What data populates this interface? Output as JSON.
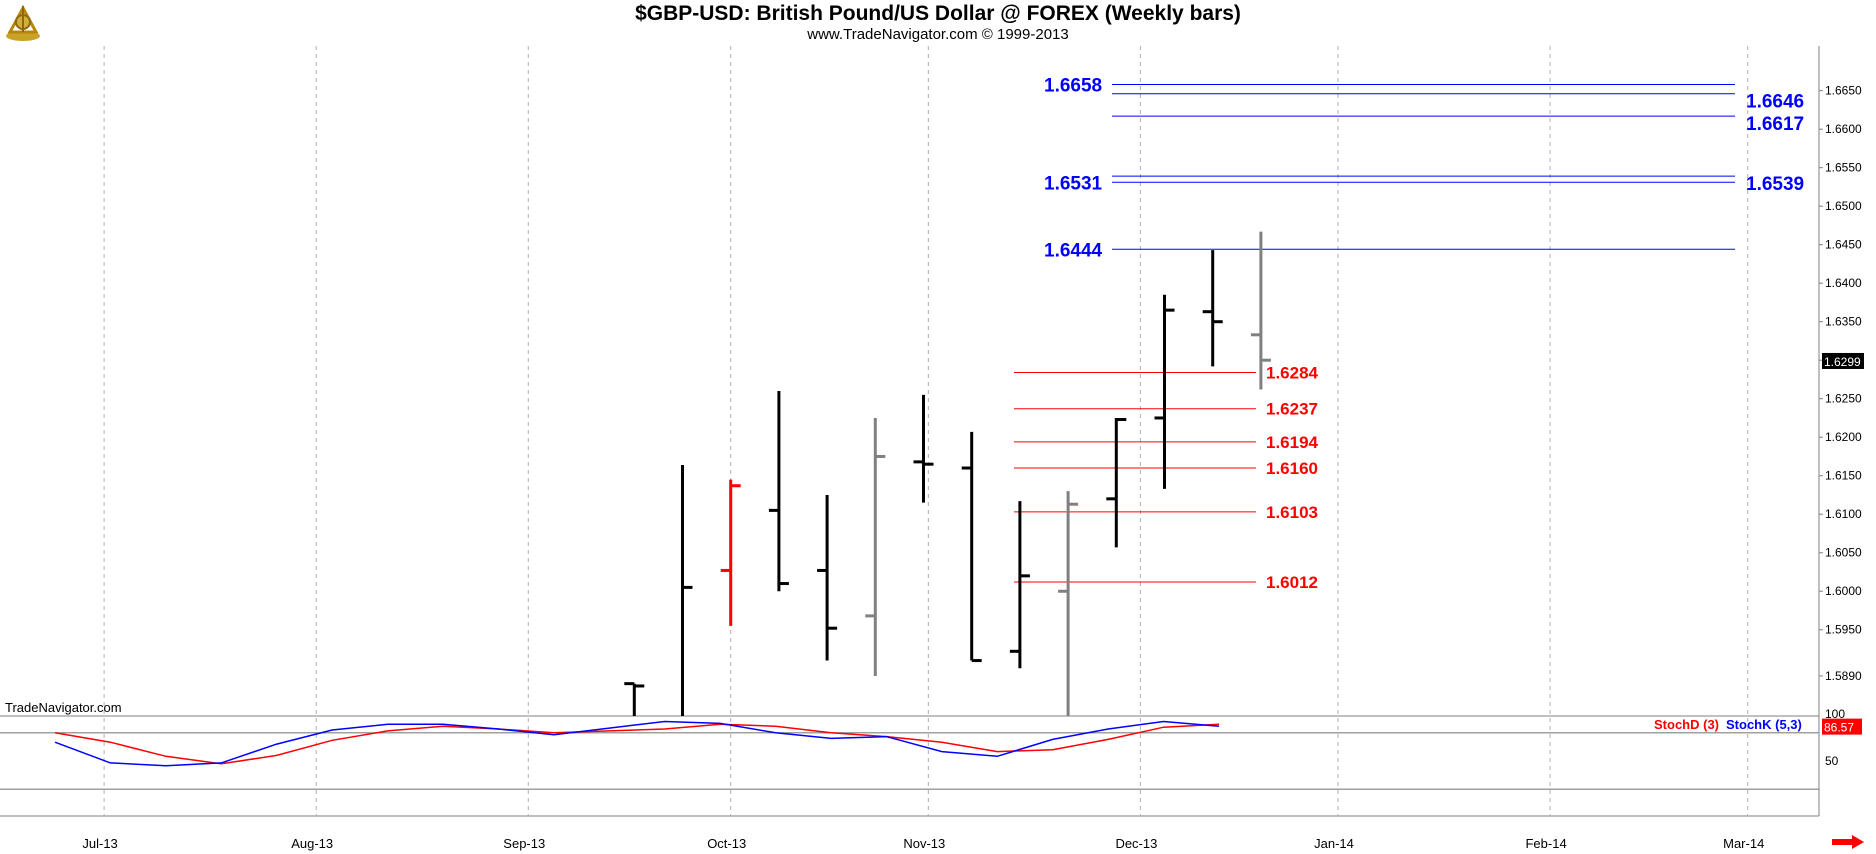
{
  "header": {
    "title": "$GBP-USD:  British Pound/US Dollar @ FOREX  (Weekly bars)",
    "subtitle": "www.TradeNavigator.com © 1999-2013",
    "logo_icon": "gold-sextant-logo-icon"
  },
  "watermark": "TradeNavigator.com",
  "colors": {
    "resistance": "#0000ff",
    "support": "#ff0000",
    "up_bar": "#000000",
    "down_bar": "#808080",
    "highlight_bar": "#ff0000",
    "grid": "#b0b0b0",
    "price_tag_bg": "#000000",
    "stoch_tag_bg": "#ff0000"
  },
  "chart_data": {
    "type": "ohlc",
    "title": "$GBP-USD:  British Pound/US Dollar @ FOREX  (Weekly bars)",
    "price_axis": {
      "range": [
        1.5838,
        1.6708
      ],
      "ticks": [
        "1.5890",
        "1.5950",
        "1.6000",
        "1.6050",
        "1.6100",
        "1.6150",
        "1.6200",
        "1.6250",
        "1.6300",
        "1.6350",
        "1.6400",
        "1.6450",
        "1.6500",
        "1.6550",
        "1.6600",
        "1.6650"
      ]
    },
    "last_price": "1.6299",
    "x_axis": {
      "labels": [
        "Jul-13",
        "Aug-13",
        "Sep-13",
        "Oct-13",
        "Nov-13",
        "Dec-13",
        "Jan-14",
        "Feb-14",
        "Mar-14"
      ],
      "label_weeks": [
        0.5,
        4.9,
        9.3,
        13.5,
        17.6,
        22.0,
        26.1,
        30.5,
        34.6
      ]
    },
    "bars": [
      {
        "week": 11.5,
        "open": 1.588,
        "high": 1.588,
        "low": 1.5838,
        "close": 1.5877,
        "color": "up"
      },
      {
        "week": 12.5,
        "open": 1.581,
        "high": 1.6164,
        "low": 1.581,
        "close": 1.6005,
        "color": "up"
      },
      {
        "week": 13.5,
        "open": 1.6027,
        "high": 1.6145,
        "low": 1.5955,
        "close": 1.6137,
        "color": "highlight"
      },
      {
        "week": 14.5,
        "open": 1.6105,
        "high": 1.626,
        "low": 1.6,
        "close": 1.601,
        "color": "up"
      },
      {
        "week": 15.5,
        "open": 1.6027,
        "high": 1.6125,
        "low": 1.591,
        "close": 1.5952,
        "color": "up"
      },
      {
        "week": 16.5,
        "open": 1.5968,
        "high": 1.6225,
        "low": 1.589,
        "close": 1.6175,
        "color": "down"
      },
      {
        "week": 17.5,
        "open": 1.6168,
        "high": 1.6255,
        "low": 1.6115,
        "close": 1.6165,
        "color": "up"
      },
      {
        "week": 18.5,
        "open": 1.616,
        "high": 1.6207,
        "low": 1.591,
        "close": 1.591,
        "color": "up"
      },
      {
        "week": 19.5,
        "open": 1.5922,
        "high": 1.6117,
        "low": 1.59,
        "close": 1.602,
        "color": "up"
      },
      {
        "week": 20.5,
        "open": 1.6,
        "high": 1.613,
        "low": 1.5838,
        "close": 1.6113,
        "color": "down"
      },
      {
        "week": 21.5,
        "open": 1.612,
        "high": 1.6225,
        "low": 1.6057,
        "close": 1.6223,
        "color": "up"
      },
      {
        "week": 22.5,
        "open": 1.6225,
        "high": 1.6385,
        "low": 1.6133,
        "close": 1.6365,
        "color": "up"
      },
      {
        "week": 23.5,
        "open": 1.6363,
        "high": 1.6443,
        "low": 1.6292,
        "close": 1.635,
        "color": "up"
      },
      {
        "week": 24.5,
        "open": 1.6333,
        "high": 1.6467,
        "low": 1.6262,
        "close": 1.63,
        "color": "down"
      }
    ],
    "resistance_levels": [
      {
        "value": 1.6658,
        "label": "1.6658",
        "side": "left"
      },
      {
        "value": 1.6646,
        "label": "1.6646",
        "side": "right"
      },
      {
        "value": 1.6617,
        "label": "1.6617",
        "side": "right"
      },
      {
        "value": 1.6539,
        "label": "1.6539",
        "side": "right"
      },
      {
        "value": 1.6531,
        "label": "1.6531",
        "side": "left"
      },
      {
        "value": 1.6444,
        "label": "1.6444",
        "side": "left"
      }
    ],
    "support_levels": [
      {
        "value": 1.6284,
        "label": "1.6284"
      },
      {
        "value": 1.6237,
        "label": "1.6237"
      },
      {
        "value": 1.6194,
        "label": "1.6194"
      },
      {
        "value": 1.616,
        "label": "1.6160"
      },
      {
        "value": 1.6103,
        "label": "1.6103"
      },
      {
        "value": 1.6012,
        "label": "1.6012"
      }
    ],
    "stochastic": {
      "range": [
        0,
        100
      ],
      "ticks": [
        "100",
        "50"
      ],
      "reference_levels": [
        80,
        20
      ],
      "last_value": "86.57",
      "series": [
        {
          "name": "StochD (3)",
          "color": "#ff0000",
          "points": [
            [
              0,
              80
            ],
            [
              1,
              70
            ],
            [
              2,
              55
            ],
            [
              3,
              47
            ],
            [
              4,
              56
            ],
            [
              5,
              72
            ],
            [
              6,
              82
            ],
            [
              7,
              87
            ],
            [
              8,
              84
            ],
            [
              9,
              80
            ],
            [
              10,
              82
            ],
            [
              11,
              84
            ],
            [
              12,
              89
            ],
            [
              13,
              87
            ],
            [
              14,
              80
            ],
            [
              15,
              76
            ],
            [
              16,
              70
            ],
            [
              17,
              60
            ],
            [
              18,
              62
            ],
            [
              19,
              73
            ],
            [
              20,
              86
            ],
            [
              21,
              89
            ]
          ]
        },
        {
          "name": "StochK (5,3)",
          "color": "#0000ff",
          "points": [
            [
              0,
              70
            ],
            [
              1,
              48
            ],
            [
              2,
              45
            ],
            [
              3,
              48
            ],
            [
              4,
              68
            ],
            [
              5,
              83
            ],
            [
              6,
              89
            ],
            [
              7,
              89
            ],
            [
              8,
              84
            ],
            [
              9,
              78
            ],
            [
              10,
              85
            ],
            [
              11,
              92
            ],
            [
              12,
              90
            ],
            [
              13,
              80
            ],
            [
              14,
              74
            ],
            [
              15,
              76
            ],
            [
              16,
              60
            ],
            [
              17,
              55
            ],
            [
              18,
              73
            ],
            [
              19,
              84
            ],
            [
              20,
              92
            ],
            [
              21,
              87
            ]
          ]
        }
      ],
      "x_start_week": 0.0,
      "x_step_weeks": 1.15
    }
  }
}
